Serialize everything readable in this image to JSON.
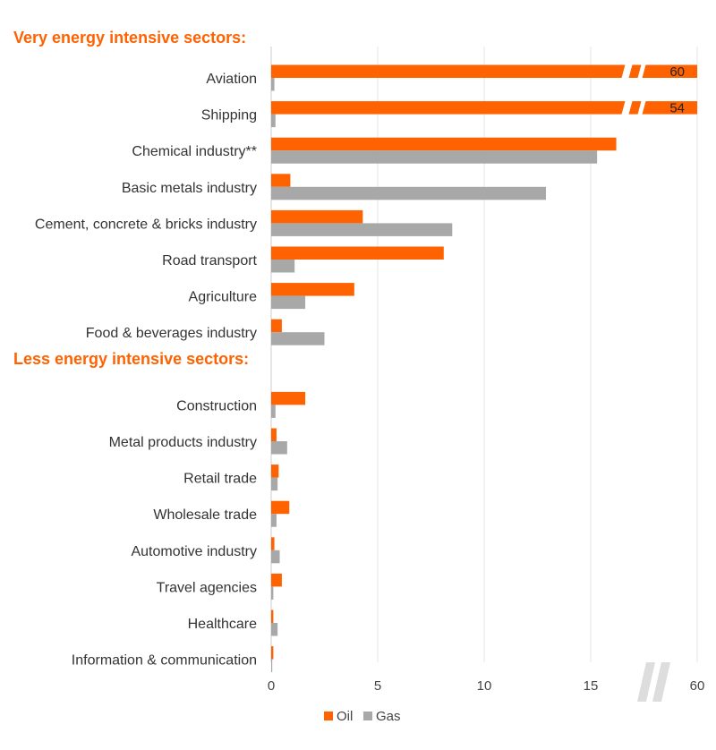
{
  "colors": {
    "oil": "#ff6200",
    "gas": "#a8a8a8",
    "section_heading": "#ff6200",
    "grid": "#e6e6e6",
    "axis": "#cccccc",
    "watermark": "#dddddd"
  },
  "chart_data": {
    "type": "bar",
    "orientation": "horizontal",
    "sections": [
      {
        "title": "Very energy intensive sectors:",
        "categories": [
          "Aviation",
          "Shipping",
          "Chemical industry**",
          "Basic metals industry",
          "Cement, concrete & bricks industry",
          "Road transport",
          "Agriculture",
          "Food & beverages industry"
        ],
        "oil": [
          60,
          54,
          16.2,
          0.9,
          4.3,
          8.1,
          3.9,
          0.5
        ],
        "gas": [
          0.15,
          0.2,
          15.3,
          12.9,
          8.5,
          1.1,
          1.6,
          2.5
        ]
      },
      {
        "title": "Less energy intensive sectors:",
        "categories": [
          "Construction",
          "Metal products industry",
          "Retail trade",
          "Wholesale trade",
          "Automotive industry",
          "Travel agencies",
          "Healthcare",
          "Information & communication"
        ],
        "oil": [
          1.6,
          0.25,
          0.35,
          0.85,
          0.15,
          0.5,
          0.1,
          0.1
        ],
        "gas": [
          0.2,
          0.75,
          0.3,
          0.25,
          0.4,
          0.1,
          0.3,
          0.05
        ]
      }
    ],
    "broken_bars": [
      {
        "category": "Aviation",
        "series": "Oil",
        "label": "60"
      },
      {
        "category": "Shipping",
        "series": "Oil",
        "label": "54"
      }
    ],
    "x_ticks": [
      "0",
      "5",
      "10",
      "15",
      "60"
    ],
    "x_tick_values": [
      0,
      5,
      10,
      15,
      20
    ],
    "xlim": [
      0,
      20
    ],
    "axis_break_after": 15,
    "series": [
      {
        "name": "Oil",
        "color": "#ff6200"
      },
      {
        "name": "Gas",
        "color": "#a8a8a8"
      }
    ],
    "legend": [
      "Oil",
      "Gas"
    ],
    "legend_position": "bottom-center",
    "grid": true
  }
}
